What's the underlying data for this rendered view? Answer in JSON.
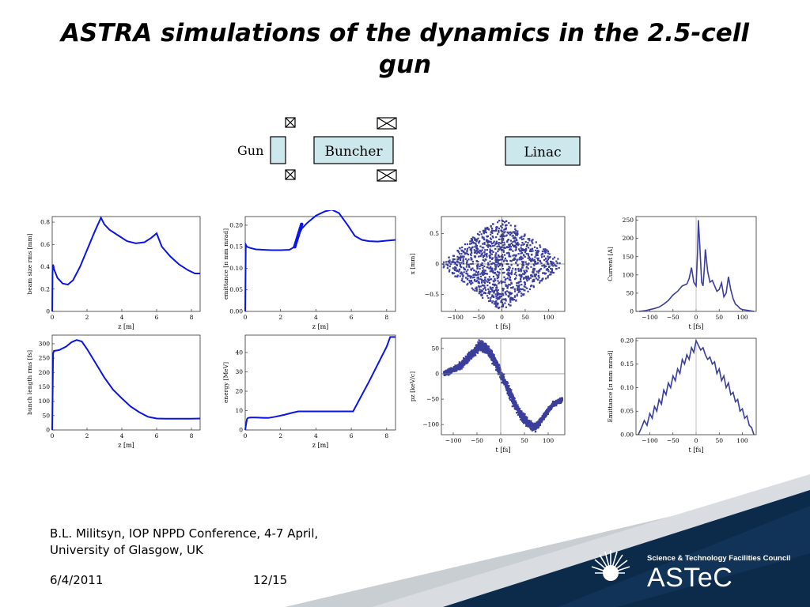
{
  "slide": {
    "title": "ASTRA simulations of the dynamics in the 2.5-cell gun",
    "footer_citation": "B.L. Militsyn, IOP NPPD Conference, 4-7 April, University of Glasgow, UK",
    "date": "6/4/2011",
    "page": "12/15",
    "org_name": "Science & Technology Facilities Council",
    "brand": "ASTeC",
    "colors": {
      "curve": "#0a14e6",
      "scatter": "#3b3e9c",
      "banner": "#0c2a4a"
    }
  },
  "diagram": {
    "gun_label": "Gun",
    "buncher_label": "Buncher",
    "linac_label": "Linac"
  },
  "chart_data": [
    {
      "type": "line",
      "xlabel": "z [m]",
      "ylabel": "beam size rms [mm]",
      "xlim": [
        0,
        8.5
      ],
      "ylim": [
        0,
        0.85
      ],
      "xticks": [
        0,
        2,
        4,
        6,
        8
      ],
      "yticks": [
        0.0,
        0.2,
        0.4,
        0.6,
        0.8
      ],
      "x": [
        0,
        0.02,
        0.05,
        0.1,
        0.3,
        0.6,
        0.9,
        1.2,
        1.6,
        2.0,
        2.4,
        2.8,
        3.0,
        3.3,
        3.8,
        4.3,
        4.8,
        5.3,
        5.7,
        6.0,
        6.3,
        6.8,
        7.3,
        7.8,
        8.2,
        8.5
      ],
      "y": [
        0,
        0.35,
        0.42,
        0.38,
        0.3,
        0.25,
        0.24,
        0.28,
        0.4,
        0.55,
        0.7,
        0.84,
        0.78,
        0.73,
        0.68,
        0.63,
        0.61,
        0.62,
        0.66,
        0.7,
        0.58,
        0.49,
        0.42,
        0.37,
        0.34,
        0.34
      ]
    },
    {
      "type": "line",
      "xlabel": "z [m]",
      "ylabel": "emittance [π mm mrad]",
      "xlim": [
        0,
        8.5
      ],
      "ylim": [
        0,
        0.22
      ],
      "xticks": [
        0,
        2,
        4,
        6,
        8
      ],
      "yticks": [
        "0.00",
        "0.05",
        "0.10",
        "0.15",
        "0.20"
      ],
      "x": [
        0,
        0.03,
        0.1,
        0.3,
        0.6,
        1.0,
        1.5,
        2.0,
        2.5,
        2.8,
        3.0,
        3.2,
        3.5,
        4.0,
        4.5,
        4.9,
        5.3,
        5.8,
        6.2,
        6.6,
        7.0,
        7.5,
        8.0,
        8.5
      ],
      "y": [
        0,
        0.155,
        0.15,
        0.147,
        0.144,
        0.143,
        0.142,
        0.142,
        0.143,
        0.15,
        0.175,
        0.192,
        0.205,
        0.222,
        0.232,
        0.236,
        0.228,
        0.2,
        0.175,
        0.166,
        0.163,
        0.162,
        0.164,
        0.166
      ]
    },
    {
      "type": "line",
      "xlabel": "z [m]",
      "ylabel": "bunch length rms [fs]",
      "xlim": [
        0,
        8.5
      ],
      "ylim": [
        0,
        330
      ],
      "xticks": [
        0,
        2,
        4,
        6,
        8
      ],
      "yticks": [
        0,
        50,
        100,
        150,
        200,
        250,
        300
      ],
      "x": [
        0,
        0.05,
        0.1,
        0.4,
        0.8,
        1.1,
        1.4,
        1.7,
        2.0,
        2.5,
        3.0,
        3.5,
        4.0,
        4.5,
        5.0,
        5.5,
        6.0,
        6.5,
        7.0,
        7.5,
        8.0,
        8.5
      ],
      "y": [
        0,
        265,
        275,
        278,
        290,
        305,
        313,
        308,
        282,
        232,
        182,
        140,
        110,
        82,
        62,
        46,
        40,
        39,
        39,
        39,
        39,
        40
      ]
    },
    {
      "type": "line",
      "xlabel": "z [m]",
      "ylabel": "energy [MeV]",
      "xlim": [
        0,
        8.5
      ],
      "ylim": [
        0,
        49
      ],
      "xticks": [
        0,
        2,
        4,
        6,
        8
      ],
      "yticks": [
        0,
        10,
        20,
        30,
        40
      ],
      "x": [
        0,
        0.05,
        0.1,
        0.15,
        0.3,
        0.6,
        1.0,
        1.3,
        1.7,
        2.2,
        2.7,
        3.0,
        3.2,
        4.0,
        5.0,
        5.9,
        6.1,
        7.0,
        8.0,
        8.2,
        8.5
      ],
      "y": [
        0,
        3,
        5.6,
        6.2,
        6.4,
        6.4,
        6.3,
        6.2,
        6.8,
        7.8,
        9.0,
        9.6,
        9.6,
        9.6,
        9.6,
        9.6,
        9.6,
        25,
        43,
        48,
        48
      ]
    },
    {
      "type": "scatter",
      "xlabel": "t [fs]",
      "ylabel": "x [mm]",
      "xlim": [
        -130,
        135
      ],
      "ylim": [
        -0.78,
        0.78
      ],
      "xticks": [
        -100,
        -50,
        0,
        50,
        100
      ],
      "yticks": [
        -0.5,
        0.0,
        0.5
      ],
      "shape": "diamond",
      "center": [
        0,
        0
      ],
      "half_width_t": 125,
      "half_height_x": 0.73,
      "points": 2200
    },
    {
      "type": "line",
      "xlabel": "t [fs]",
      "ylabel": "Current [A]",
      "xlim": [
        -130,
        130
      ],
      "ylim": [
        0,
        260
      ],
      "xticks": [
        -100,
        -50,
        0,
        50,
        100
      ],
      "yticks": [
        0,
        50,
        100,
        150,
        200,
        250
      ],
      "x": [
        -123,
        -110,
        -100,
        -90,
        -80,
        -70,
        -60,
        -50,
        -40,
        -30,
        -20,
        -15,
        -10,
        -5,
        0,
        3,
        5,
        8,
        12,
        15,
        18,
        20,
        25,
        30,
        35,
        40,
        45,
        50,
        55,
        60,
        65,
        70,
        75,
        80,
        85,
        90,
        95,
        100,
        110,
        120,
        125
      ],
      "y": [
        0,
        2,
        5,
        8,
        12,
        20,
        30,
        45,
        55,
        70,
        75,
        90,
        120,
        80,
        70,
        160,
        250,
        180,
        80,
        70,
        120,
        170,
        110,
        80,
        85,
        70,
        55,
        60,
        78,
        40,
        50,
        95,
        60,
        35,
        20,
        15,
        8,
        5,
        3,
        1,
        0
      ]
    },
    {
      "type": "scatter",
      "xlabel": "t [fs]",
      "ylabel": "pz [keV/c]",
      "xlim": [
        -125,
        135
      ],
      "ylim": [
        -120,
        70
      ],
      "xticks": [
        -100,
        -50,
        0,
        50,
        100
      ],
      "yticks": [
        -100,
        -50,
        0,
        50
      ],
      "band": {
        "t": [
          -120,
          -100,
          -80,
          -60,
          -45,
          -30,
          -15,
          0,
          15,
          30,
          45,
          60,
          75,
          90,
          110,
          130
        ],
        "pz_mean": [
          0,
          8,
          20,
          40,
          55,
          50,
          30,
          0,
          -30,
          -60,
          -85,
          -100,
          -105,
          -85,
          -60,
          -50
        ]
      },
      "points": 2200
    },
    {
      "type": "line",
      "xlabel": "t [fs]",
      "ylabel": "Emittance [π mm mrad]",
      "xlim": [
        -130,
        130
      ],
      "ylim": [
        0,
        0.205
      ],
      "xticks": [
        -100,
        -50,
        0,
        50,
        100
      ],
      "yticks": [
        "0.00",
        "0.05",
        "0.10",
        "0.15",
        "0.20"
      ],
      "x": [
        -125,
        -118,
        -112,
        -106,
        -100,
        -95,
        -90,
        -85,
        -80,
        -75,
        -70,
        -65,
        -60,
        -55,
        -50,
        -45,
        -40,
        -35,
        -30,
        -25,
        -20,
        -15,
        -10,
        -5,
        0,
        5,
        10,
        15,
        20,
        25,
        30,
        35,
        40,
        45,
        50,
        55,
        60,
        65,
        70,
        75,
        80,
        85,
        90,
        95,
        100,
        105,
        110,
        115,
        120,
        125
      ],
      "y": [
        0,
        0.015,
        0.03,
        0.02,
        0.045,
        0.035,
        0.06,
        0.05,
        0.075,
        0.065,
        0.095,
        0.085,
        0.11,
        0.1,
        0.125,
        0.115,
        0.14,
        0.13,
        0.16,
        0.15,
        0.17,
        0.16,
        0.185,
        0.175,
        0.2,
        0.19,
        0.18,
        0.185,
        0.17,
        0.16,
        0.165,
        0.15,
        0.155,
        0.13,
        0.14,
        0.115,
        0.125,
        0.1,
        0.11,
        0.085,
        0.09,
        0.07,
        0.075,
        0.05,
        0.055,
        0.035,
        0.04,
        0.02,
        0.015,
        0
      ]
    }
  ]
}
